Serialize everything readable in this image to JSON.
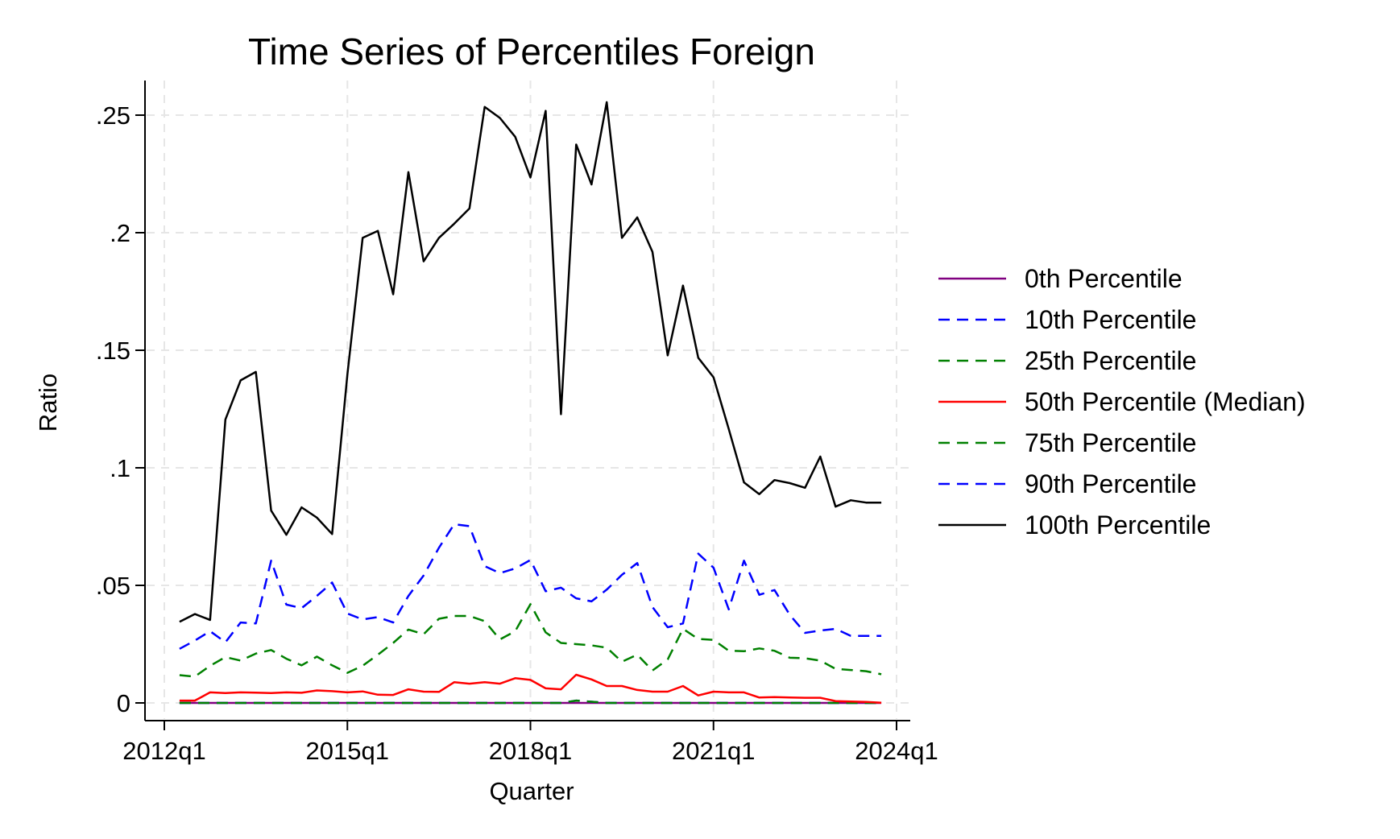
{
  "chart_data": {
    "type": "line",
    "title": "Time Series of Percentiles Foreign",
    "xlabel": "Quarter",
    "ylabel": "Ratio",
    "x_ticks": [
      "2012q1",
      "2015q1",
      "2018q1",
      "2021q1",
      "2024q1"
    ],
    "y_ticks": [
      "0",
      ".05",
      ".1",
      ".15",
      ".2",
      ".25"
    ],
    "y_tick_values": [
      0,
      0.05,
      0.1,
      0.15,
      0.2,
      0.25
    ],
    "x_tick_values": [
      0,
      12,
      24,
      36,
      48
    ],
    "xlim": [
      0,
      48
    ],
    "ylim": [
      0,
      0.26
    ],
    "grid": true,
    "legend_position": "right",
    "x": [
      "2012q2",
      "2012q3",
      "2012q4",
      "2013q1",
      "2013q2",
      "2013q3",
      "2013q4",
      "2014q1",
      "2014q2",
      "2014q3",
      "2014q4",
      "2015q1",
      "2015q2",
      "2015q3",
      "2015q4",
      "2016q1",
      "2016q2",
      "2016q3",
      "2016q4",
      "2017q1",
      "2017q2",
      "2017q3",
      "2017q4",
      "2018q1",
      "2018q2",
      "2018q3",
      "2018q4",
      "2019q1",
      "2019q2",
      "2019q3",
      "2019q4",
      "2020q1",
      "2020q2",
      "2020q3",
      "2020q4",
      "2021q1",
      "2021q2",
      "2021q3",
      "2021q4",
      "2022q1",
      "2022q2",
      "2022q3",
      "2022q4",
      "2023q1",
      "2023q2",
      "2023q3",
      "2023q4"
    ],
    "series": [
      {
        "name": "0th Percentile",
        "color": "#800080",
        "dash": "solid",
        "values": [
          0,
          0,
          0,
          0,
          0,
          0,
          0,
          0,
          0,
          0,
          0,
          0,
          0,
          0,
          0,
          0,
          0,
          0,
          0,
          0,
          0,
          0,
          0,
          0,
          0,
          0,
          0,
          0,
          0,
          0,
          0,
          0,
          0,
          0,
          0,
          0,
          0,
          0,
          0,
          0,
          0,
          0,
          0,
          0,
          0,
          0,
          0
        ]
      },
      {
        "name": "10th Percentile",
        "color": "#0000ff",
        "dash": "dashed",
        "values": [
          0,
          0,
          0,
          0,
          0,
          0,
          0,
          0,
          0,
          0,
          0,
          0,
          0,
          0,
          0,
          0,
          0,
          0,
          0,
          0,
          0,
          0,
          0,
          0,
          0,
          0,
          0.001,
          0.0005,
          0,
          0,
          0,
          0,
          0,
          0,
          0,
          0,
          0,
          0,
          0,
          0,
          0,
          0,
          0,
          0,
          0,
          0,
          0
        ]
      },
      {
        "name": "25th Percentile",
        "color": "#008000",
        "dash": "dashed",
        "values": [
          0,
          0,
          0,
          0,
          0,
          0,
          0,
          0,
          0,
          0,
          0,
          0,
          0,
          0,
          0,
          0,
          0,
          0,
          0,
          0,
          0,
          0,
          0,
          0,
          0,
          0,
          0.001,
          0.0005,
          0,
          0,
          0,
          0,
          0,
          0,
          0,
          0,
          0,
          0,
          0,
          0,
          0,
          0,
          0,
          0,
          0,
          0,
          0
        ]
      },
      {
        "name": "50th Percentile (Median)",
        "color": "#ff0000",
        "dash": "solid",
        "values": [
          0.001,
          0.001,
          0.0045,
          0.0042,
          0.0045,
          0.0044,
          0.0042,
          0.0045,
          0.0043,
          0.0053,
          0.005,
          0.0045,
          0.0049,
          0.0035,
          0.0034,
          0.0058,
          0.0048,
          0.0047,
          0.0088,
          0.0082,
          0.0088,
          0.0082,
          0.0105,
          0.0098,
          0.0062,
          0.0058,
          0.012,
          0.01,
          0.0072,
          0.0072,
          0.0055,
          0.0048,
          0.0048,
          0.0072,
          0.0032,
          0.0048,
          0.0045,
          0.0045,
          0.0023,
          0.0025,
          0.0023,
          0.0022,
          0.0022,
          0.0008,
          0.0006,
          0.0004,
          0.0001
        ]
      },
      {
        "name": "75th Percentile",
        "color": "#008000",
        "dash": "dashed",
        "values": [
          0.0118,
          0.0112,
          0.0158,
          0.0195,
          0.018,
          0.021,
          0.0225,
          0.0188,
          0.016,
          0.0197,
          0.016,
          0.0128,
          0.0158,
          0.0205,
          0.0255,
          0.0312,
          0.0292,
          0.0358,
          0.037,
          0.037,
          0.0348,
          0.027,
          0.0305,
          0.042,
          0.03,
          0.0255,
          0.025,
          0.0245,
          0.0235,
          0.0175,
          0.0205,
          0.0138,
          0.0185,
          0.0315,
          0.0272,
          0.0268,
          0.0222,
          0.022,
          0.0232,
          0.0222,
          0.0192,
          0.019,
          0.018,
          0.0145,
          0.014,
          0.0135,
          0.0122
        ]
      },
      {
        "name": "90th Percentile",
        "color": "#0000ff",
        "dash": "dashed",
        "values": [
          0.023,
          0.0265,
          0.0305,
          0.0258,
          0.0342,
          0.0338,
          0.0605,
          0.0418,
          0.0403,
          0.0455,
          0.0512,
          0.038,
          0.0355,
          0.0365,
          0.0342,
          0.0455,
          0.0542,
          0.066,
          0.076,
          0.0752,
          0.0582,
          0.0552,
          0.0572,
          0.0608,
          0.0475,
          0.049,
          0.0445,
          0.0432,
          0.0482,
          0.0545,
          0.0595,
          0.0408,
          0.0322,
          0.0338,
          0.0635,
          0.0575,
          0.0398,
          0.0605,
          0.046,
          0.048,
          0.0375,
          0.0298,
          0.0308,
          0.0315,
          0.0285,
          0.0285,
          0.0285
        ]
      },
      {
        "name": "100th Percentile",
        "color": "#000000",
        "dash": "solid",
        "values": [
          0.0345,
          0.0378,
          0.0353,
          0.1205,
          0.1372,
          0.1408,
          0.0818,
          0.0715,
          0.0832,
          0.0788,
          0.0718,
          0.1398,
          0.1978,
          0.2008,
          0.1738,
          0.2258,
          0.1878,
          0.1978,
          0.2038,
          0.2103,
          0.2535,
          0.2488,
          0.2408,
          0.2235,
          0.2518,
          0.1228,
          0.2375,
          0.2205,
          0.2555,
          0.1978,
          0.2065,
          0.1918,
          0.1478,
          0.1775,
          0.1468,
          0.1385,
          0.1165,
          0.0938,
          0.0888,
          0.0948,
          0.0935,
          0.0915,
          0.1048,
          0.0835,
          0.0862,
          0.0852,
          0.0852
        ]
      }
    ]
  }
}
